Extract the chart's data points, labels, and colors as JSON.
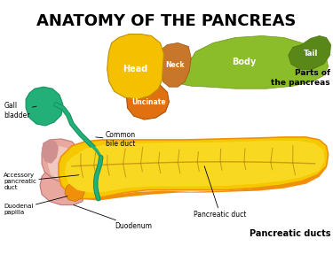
{
  "title": "ANATOMY OF THE PANCREAS",
  "title_fontsize": 13,
  "title_weight": "bold",
  "background_color": "#ffffff",
  "labels": {
    "head": "Head",
    "neck": "Neck",
    "body": "Body",
    "tail": "Tail",
    "uncinate": "Uncinate",
    "gall_bladder": "Gall\nbladder",
    "common_bile_duct": "Common\nbile duct",
    "accessory_pancreatic_duct": "Accessory\npancreatic\nduct",
    "duodenal_papilla": "Duodenal\npapilla",
    "duodenum": "Duodenum",
    "pancreatic_duct": "Pancreatic duct",
    "parts_label": "Parts of\nthe pancreas",
    "pancreatic_ducts_label": "Pancreatic ducts"
  },
  "colors": {
    "head_yellow": "#F5C000",
    "neck_brown": "#C8762A",
    "body_green": "#8BBD2A",
    "tail_green": "#6B9E20",
    "uncinate_orange": "#E07010",
    "gall_bladder_teal": "#22B078",
    "gall_bladder_dark": "#159060",
    "duodenum_pink": "#E8A8A0",
    "duodenum_dark": "#C07878",
    "duodenum_shadow": "#C08878",
    "pancreas_yellow": "#F5C800",
    "pancreas_orange": "#F0900A",
    "duct_green": "#22B078",
    "duct_green_dark": "#159060",
    "white_text": "#ffffff",
    "black_text": "#111111"
  }
}
